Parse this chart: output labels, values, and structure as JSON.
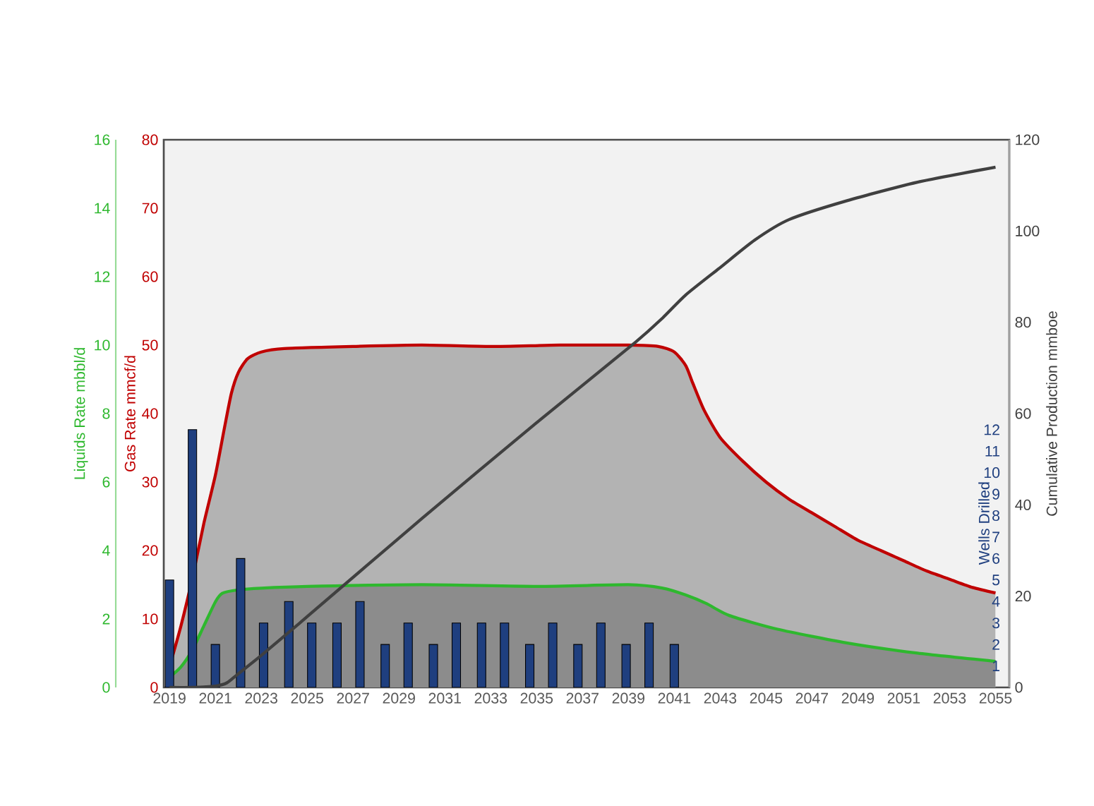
{
  "chart_data": [
    {
      "type": "area",
      "xlim": [
        2018.75,
        2055.6
      ],
      "xticks": [
        2019,
        2021,
        2023,
        2025,
        2027,
        2029,
        2031,
        2033,
        2035,
        2037,
        2039,
        2041,
        2043,
        2045,
        2047,
        2049,
        2051,
        2053,
        2055
      ],
      "ylabel": "Gas Rate mmcf/d",
      "ylim": [
        0,
        80
      ],
      "yticks": [
        0,
        10,
        20,
        30,
        40,
        50,
        60,
        70,
        80
      ],
      "y2label": "Liquids Rate mbbl/d",
      "y2lim": [
        0,
        16
      ],
      "y2ticks": [
        0,
        2,
        4,
        6,
        8,
        10,
        12,
        14,
        16
      ],
      "y3label": "Cumulative Production mmboe",
      "y3lim": [
        0,
        120
      ],
      "y3ticks": [
        0,
        20,
        40,
        60,
        80,
        100,
        120
      ],
      "series": [
        {
          "color": "#c00000",
          "x": [
            2019,
            2019.5,
            2020,
            2020.5,
            2021,
            2021.4,
            2021.7,
            2022,
            2022.4,
            2023,
            2024,
            2027,
            2030,
            2033,
            2036,
            2039,
            2040.3,
            2041,
            2041.5,
            2041.8,
            2042.3,
            2043,
            2044,
            2045,
            2046,
            2047,
            2048,
            2049,
            2050,
            2051,
            2052,
            2053,
            2054,
            2055
          ],
          "values": [
            3,
            9,
            16,
            24,
            31,
            38,
            43,
            46,
            48,
            49,
            49.5,
            49.8,
            50,
            49.8,
            50,
            50,
            49.8,
            49,
            47,
            44.5,
            40.5,
            36.5,
            33,
            30,
            27.5,
            25.5,
            23.5,
            21.5,
            20,
            18.5,
            17,
            15.8,
            14.6,
            13.8
          ]
        },
        {
          "axis": "y2",
          "color": "#2eb82e",
          "x": [
            2019,
            2019.5,
            2020,
            2020.5,
            2021,
            2021.3,
            2022,
            2023,
            2025,
            2030,
            2035,
            2039,
            2040.5,
            2041.5,
            2042.4,
            2043.4,
            2045.5,
            2048.5,
            2051.6,
            2055
          ],
          "values": [
            0.3,
            0.6,
            1.1,
            1.8,
            2.5,
            2.75,
            2.85,
            2.9,
            2.95,
            3.0,
            2.95,
            3.0,
            2.9,
            2.7,
            2.45,
            2.1,
            1.7,
            1.3,
            1.0,
            0.76
          ]
        },
        {
          "type": "line",
          "axis": "y3",
          "color": "#404040",
          "x": [
            2019,
            2020,
            2021,
            2021.5,
            2022,
            2023,
            2025,
            2030,
            2035,
            2039.3,
            2040.5,
            2041.5,
            2043,
            2044.5,
            2046,
            2048.5,
            2051.6,
            2055
          ],
          "values": [
            0,
            0,
            0.3,
            1,
            3,
            7,
            15.5,
            37,
            58,
            75.6,
            81,
            86,
            92,
            98,
            102.5,
            106.6,
            110.7,
            114
          ]
        }
      ]
    },
    {
      "type": "bar",
      "tick_labels": "y",
      "xlim": [
        2018.75,
        2055.6
      ],
      "ylabel": "Wells Drilled",
      "ylim": [
        0,
        25.5
      ],
      "yticks": [
        1,
        2,
        3,
        4,
        5,
        6,
        7,
        8,
        9,
        10,
        11,
        12
      ],
      "series": [
        {
          "color": "#1f3f7f",
          "x": [
            2019.0,
            2020.0,
            2021.0,
            2022.1,
            2023.1,
            2024.2,
            2025.2,
            2026.3,
            2027.3,
            2028.4,
            2029.4,
            2030.5,
            2031.5,
            2032.6,
            2033.6,
            2034.7,
            2035.7,
            2036.8,
            2037.8,
            2038.9,
            2039.9,
            2041.0
          ],
          "values": [
            5,
            12,
            2,
            6,
            3,
            4,
            3,
            3,
            4,
            2,
            3,
            2,
            3,
            3,
            3,
            2,
            3,
            2,
            3,
            2,
            3,
            2
          ]
        }
      ]
    }
  ]
}
